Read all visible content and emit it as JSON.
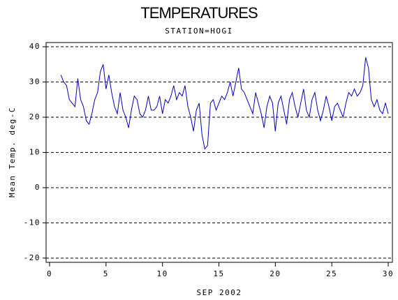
{
  "chart_data": {
    "type": "line",
    "title": "TEMPERATURES",
    "subtitle": "STATION=HOGI",
    "x_label": "SEP 2002",
    "y_label": "Mean Temp. deg-C",
    "xlim": [
      -0.31,
      30.37
    ],
    "ylim": [
      -21.2,
      41.2
    ],
    "xticks": [
      0,
      5,
      10,
      15,
      20,
      25,
      30
    ],
    "yticks": [
      -20,
      -10,
      0,
      10,
      20,
      30,
      40
    ],
    "grid": true,
    "x": [
      1,
      1.25,
      1.5,
      1.75,
      2,
      2.25,
      2.5,
      2.75,
      3,
      3.25,
      3.5,
      3.75,
      4,
      4.25,
      4.5,
      4.75,
      5,
      5.25,
      5.5,
      5.75,
      6,
      6.25,
      6.5,
      6.75,
      7,
      7.25,
      7.5,
      7.75,
      8,
      8.25,
      8.5,
      8.75,
      9,
      9.25,
      9.5,
      9.75,
      10,
      10.25,
      10.5,
      10.75,
      11,
      11.25,
      11.5,
      11.75,
      12,
      12.25,
      12.5,
      12.75,
      13,
      13.25,
      13.5,
      13.75,
      14,
      14.25,
      14.5,
      14.75,
      15,
      15.25,
      15.5,
      15.75,
      16,
      16.25,
      16.5,
      16.75,
      17,
      17.25,
      17.5,
      17.75,
      18,
      18.25,
      18.5,
      18.75,
      19,
      19.25,
      19.5,
      19.75,
      20,
      20.25,
      20.5,
      20.75,
      21,
      21.25,
      21.5,
      21.75,
      22,
      22.25,
      22.5,
      22.75,
      23,
      23.25,
      23.5,
      23.75,
      24,
      24.25,
      24.5,
      24.75,
      25,
      25.25,
      25.5,
      25.75,
      26,
      26.25,
      26.5,
      26.75,
      27,
      27.25,
      27.5,
      27.75,
      28,
      28.25,
      28.5,
      28.75,
      29,
      29.25,
      29.5,
      29.75,
      30
    ],
    "series": [
      {
        "name": "Mean Temp.",
        "color": "#0000c0",
        "values": [
          32,
          30,
          29,
          25,
          24,
          23,
          31,
          25,
          23,
          19,
          18,
          21,
          25,
          27,
          33,
          35,
          28,
          32,
          27,
          23,
          21,
          27,
          22,
          20,
          17,
          22,
          26,
          25,
          21,
          20,
          22,
          26,
          22,
          22,
          23,
          26,
          21,
          25,
          24,
          26,
          29,
          25,
          27,
          26,
          29,
          23,
          20,
          16,
          22,
          24,
          15,
          11,
          12,
          24,
          25,
          22,
          24,
          26,
          25,
          27,
          30,
          26,
          30,
          34,
          28,
          27,
          25,
          23,
          21,
          27,
          24,
          21,
          17,
          23,
          26,
          24,
          16,
          24,
          26,
          22,
          18,
          25,
          27,
          23,
          20,
          24,
          28,
          22,
          20,
          25,
          27,
          22,
          19,
          22,
          26,
          23,
          19,
          23,
          24,
          22,
          20,
          24,
          27,
          26,
          28,
          26,
          27,
          29,
          37,
          34,
          25,
          23,
          25,
          22,
          21,
          24,
          21
        ]
      }
    ]
  }
}
